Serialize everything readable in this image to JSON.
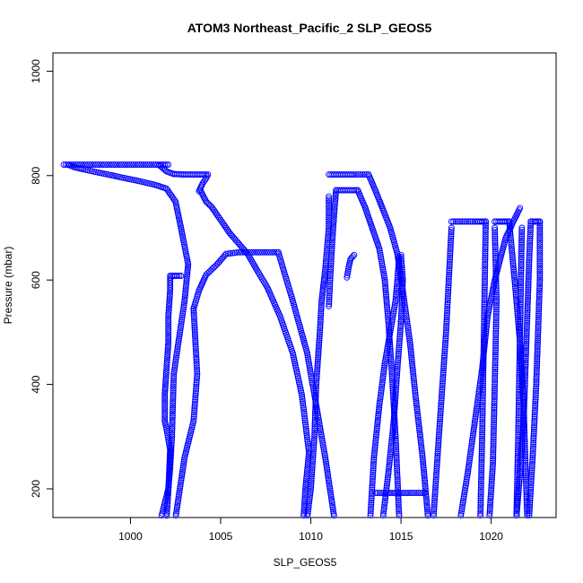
{
  "chart_data": {
    "type": "scatter",
    "title": "ATOM3 Northeast_Pacific_2 SLP_GEOS5",
    "xlabel": "SLP_GEOS5",
    "ylabel": "Pressure (mbar)",
    "xlim": [
      995.7,
      1023.6
    ],
    "ylim": [
      1035,
      145
    ],
    "y_inverted": true,
    "grid": false,
    "x_ticks": [
      {
        "value": 1000,
        "label": "1000"
      },
      {
        "value": 1005,
        "label": "1005"
      },
      {
        "value": 1010,
        "label": "1010"
      },
      {
        "value": 1015,
        "label": "1015"
      },
      {
        "value": 1020,
        "label": "1020"
      }
    ],
    "y_ticks": [
      {
        "value": 200,
        "label": "200"
      },
      {
        "value": 400,
        "label": "400"
      },
      {
        "value": 600,
        "label": "600"
      },
      {
        "value": 800,
        "label": "800"
      },
      {
        "value": 1000,
        "label": "1000"
      }
    ],
    "marker": "open-circle",
    "point_color": "#0000ff",
    "series": [
      {
        "x": [
          1001.7,
          1002.1,
          1002.2,
          1002.3,
          1002.4,
          1003.0,
          1003.2,
          1002.8,
          1002.5,
          1002.0,
          1001.4,
          1000.4,
          999.3,
          998.2,
          997.4,
          996.9,
          996.6
        ],
        "y": [
          145,
          200,
          240,
          300,
          420,
          560,
          630,
          700,
          750,
          775,
          782,
          790,
          798,
          806,
          812,
          816,
          820
        ]
      },
      {
        "x": [
          996.3,
          997.5,
          998.5,
          999.5,
          1000.5,
          1001.5,
          1002.1
        ],
        "y": [
          821,
          821,
          821,
          821,
          821,
          821,
          821
        ]
      },
      {
        "x": [
          1002.0,
          1002.1,
          1002.2,
          1002.0,
          1001.9,
          1001.9,
          1002.0,
          1002.1,
          1002.1,
          1002.2,
          1002.2
        ],
        "y": [
          145,
          195,
          275,
          315,
          330,
          380,
          430,
          480,
          530,
          580,
          605
        ]
      },
      {
        "x": [
          1002.2,
          1002.8
        ],
        "y": [
          608,
          608
        ]
      },
      {
        "x": [
          1001.6,
          1002.0,
          1002.4,
          1003.0,
          1003.6,
          1004.2
        ],
        "y": [
          820,
          808,
          803,
          802,
          802,
          802
        ]
      },
      {
        "x": [
          1002.5,
          1003.0,
          1003.5,
          1003.7,
          1003.5
        ],
        "y": [
          145,
          260,
          330,
          420,
          545
        ]
      },
      {
        "x": [
          1003.5,
          1003.8,
          1004.2,
          1004.8,
          1005.3,
          1006.0,
          1007.0,
          1008.2
        ],
        "y": [
          545,
          580,
          610,
          630,
          650,
          653,
          653,
          653
        ]
      },
      {
        "x": [
          1008.2,
          1009.0,
          1009.8,
          1010.3,
          1010.8,
          1011.3
        ],
        "y": [
          653,
          560,
          460,
          360,
          260,
          145
        ]
      },
      {
        "x": [
          1003.9,
          1004.2,
          1004.5,
          1005.0,
          1005.5,
          1006.0,
          1006.5,
          1007.0,
          1007.6,
          1008.3,
          1009.0,
          1009.5,
          1009.9
        ],
        "y": [
          770,
          750,
          740,
          715,
          690,
          670,
          650,
          620,
          585,
          530,
          460,
          380,
          270
        ]
      },
      {
        "x": [
          1009.9,
          1009.7,
          1009.6
        ],
        "y": [
          270,
          200,
          145
        ]
      },
      {
        "x": [
          1003.8,
          1004.0,
          1004.2,
          1004.3
        ],
        "y": [
          770,
          785,
          795,
          802
        ]
      },
      {
        "x": [
          1009.8,
          1010.0,
          1010.2,
          1010.3,
          1010.5,
          1010.6,
          1010.7
        ],
        "y": [
          145,
          200,
          300,
          400,
          500,
          560,
          590
        ]
      },
      {
        "x": [
          1010.7,
          1010.8,
          1010.9,
          1011.0,
          1011.0
        ],
        "y": [
          590,
          620,
          660,
          700,
          760
        ]
      },
      {
        "x": [
          1011.0,
          1011.3,
          1011.8,
          1012.4,
          1013.2
        ],
        "y": [
          802,
          802,
          802,
          802,
          802
        ]
      },
      {
        "x": [
          1013.2,
          1013.6,
          1014.0,
          1014.4,
          1014.8,
          1015.1,
          1015.5,
          1015.8,
          1016.2,
          1016.5
        ],
        "y": [
          802,
          770,
          735,
          700,
          650,
          580,
          480,
          380,
          260,
          145
        ]
      },
      {
        "x": [
          1011.0,
          1011.1,
          1011.2,
          1011.3,
          1011.4
        ],
        "y": [
          550,
          620,
          680,
          730,
          772
        ]
      },
      {
        "x": [
          1011.4,
          1011.8,
          1012.2,
          1012.6
        ],
        "y": [
          772,
          772,
          772,
          772
        ]
      },
      {
        "x": [
          1012.6,
          1013.0,
          1013.4,
          1013.8,
          1014.1,
          1014.3,
          1014.5,
          1014.7,
          1014.9
        ],
        "y": [
          772,
          740,
          700,
          660,
          600,
          520,
          420,
          300,
          145
        ]
      },
      {
        "x": [
          1012.0,
          1012.1,
          1012.2,
          1012.4
        ],
        "y": [
          605,
          625,
          640,
          648
        ]
      },
      {
        "x": [
          1013.3,
          1013.5,
          1013.8,
          1014.1,
          1014.4,
          1014.7,
          1014.8,
          1014.9
        ],
        "y": [
          145,
          260,
          360,
          440,
          500,
          560,
          600,
          645
        ]
      },
      {
        "x": [
          1014.0,
          1014.3,
          1014.6,
          1014.8,
          1015.0
        ],
        "y": [
          145,
          230,
          330,
          430,
          520
        ]
      },
      {
        "x": [
          1015.0,
          1015.1,
          1015.0
        ],
        "y": [
          520,
          600,
          648
        ]
      },
      {
        "x": [
          1013.6,
          1014.5,
          1015.5,
          1016.3
        ],
        "y": [
          192,
          192,
          192,
          192
        ]
      },
      {
        "x": [
          1016.8,
          1017.1,
          1017.5,
          1017.8
        ],
        "y": [
          145,
          300,
          500,
          700
        ]
      },
      {
        "x": [
          1017.8,
          1018.5,
          1019.2,
          1019.7
        ],
        "y": [
          712,
          712,
          712,
          712
        ]
      },
      {
        "x": [
          1019.7,
          1019.6,
          1019.5,
          1019.4
        ],
        "y": [
          712,
          500,
          300,
          145
        ]
      },
      {
        "x": [
          1018.3,
          1018.7,
          1019.1,
          1019.5,
          1019.8,
          1020.2,
          1020.5,
          1020.8,
          1021.2,
          1021.6
        ],
        "y": [
          145,
          230,
          330,
          430,
          530,
          600,
          640,
          680,
          710,
          738
        ]
      },
      {
        "x": [
          1019.9,
          1020.1,
          1020.2,
          1020.3,
          1020.2
        ],
        "y": [
          145,
          250,
          400,
          560,
          700
        ]
      },
      {
        "x": [
          1020.2,
          1020.6,
          1021.0
        ],
        "y": [
          712,
          712,
          712
        ]
      },
      {
        "x": [
          1021.0,
          1021.3,
          1021.6,
          1021.8,
          1021.9,
          1022.0
        ],
        "y": [
          712,
          600,
          480,
          360,
          250,
          145
        ]
      },
      {
        "x": [
          1021.4,
          1021.6,
          1021.8,
          1021.9,
          1022.0,
          1022.1,
          1022.2
        ],
        "y": [
          145,
          230,
          330,
          430,
          530,
          630,
          712
        ]
      },
      {
        "x": [
          1022.2,
          1022.5,
          1022.7
        ],
        "y": [
          712,
          712,
          712
        ]
      },
      {
        "x": [
          1022.1,
          1022.3,
          1022.5,
          1022.6,
          1022.7,
          1022.7
        ],
        "y": [
          145,
          260,
          400,
          500,
          600,
          712
        ]
      },
      {
        "x": [
          1021.4,
          1021.5,
          1021.6,
          1021.7
        ],
        "y": [
          145,
          300,
          500,
          700
        ]
      }
    ]
  }
}
